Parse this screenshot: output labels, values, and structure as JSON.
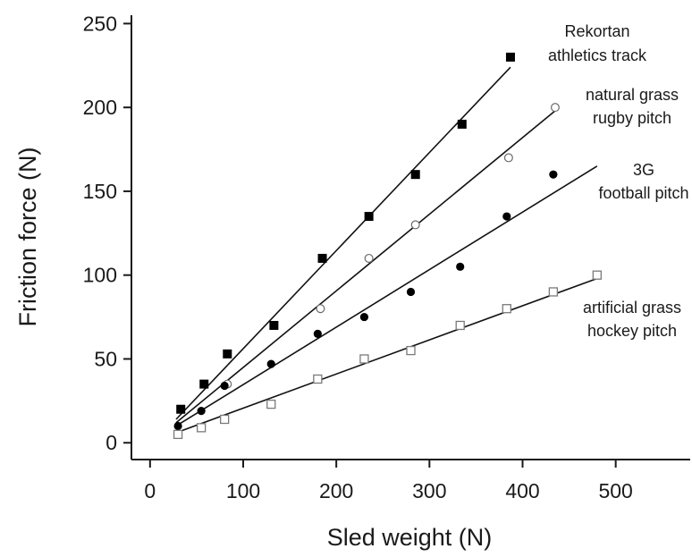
{
  "chart_data": {
    "type": "scatter",
    "xlabel": "Sled weight (N)",
    "ylabel": "Friction force (N)",
    "xlim": [
      -20,
      580
    ],
    "ylim": [
      -10,
      255
    ],
    "xticks": [
      0,
      100,
      200,
      300,
      400,
      500
    ],
    "yticks": [
      0,
      50,
      100,
      150,
      200,
      250
    ],
    "grid": false,
    "legend": "none",
    "series": [
      {
        "name": "Rekortan athletics track",
        "label_lines": [
          "Rekortan",
          "athletics track"
        ],
        "marker": "filled-square",
        "color": "#000000",
        "x": [
          33,
          58,
          83,
          133,
          185,
          235,
          285,
          335,
          387
        ],
        "y": [
          20,
          35,
          53,
          70,
          110,
          135,
          160,
          190,
          230
        ],
        "fit": {
          "x": [
            28,
            387
          ],
          "y": [
            14,
            224
          ]
        }
      },
      {
        "name": "natural grass rugby pitch",
        "label_lines": [
          "natural grass",
          "rugby pitch"
        ],
        "marker": "open-circle",
        "color": "#6a6a6a",
        "x": [
          83,
          183,
          235,
          285,
          385,
          435
        ],
        "y": [
          35,
          80,
          110,
          130,
          170,
          200
        ],
        "fit": {
          "x": [
            28,
            435
          ],
          "y": [
            12,
            198
          ]
        }
      },
      {
        "name": "3G football pitch",
        "label_lines": [
          "3G",
          "football pitch"
        ],
        "marker": "filled-circle",
        "color": "#000000",
        "x": [
          30,
          55,
          80,
          130,
          180,
          230,
          280,
          333,
          383,
          433
        ],
        "y": [
          10,
          19,
          34,
          47,
          65,
          75,
          90,
          105,
          135,
          160
        ],
        "fit": {
          "x": [
            28,
            480
          ],
          "y": [
            10,
            165
          ]
        }
      },
      {
        "name": "artificial grass hockey pitch",
        "label_lines": [
          "artificial grass",
          "hockey pitch"
        ],
        "marker": "open-square",
        "color": "#7a7a7a",
        "x": [
          30,
          55,
          80,
          130,
          180,
          230,
          280,
          333,
          383,
          433,
          480
        ],
        "y": [
          5,
          9,
          14,
          23,
          38,
          50,
          55,
          70,
          80,
          90,
          100
        ],
        "fit": {
          "x": [
            28,
            480
          ],
          "y": [
            6,
            98
          ]
        }
      }
    ]
  }
}
